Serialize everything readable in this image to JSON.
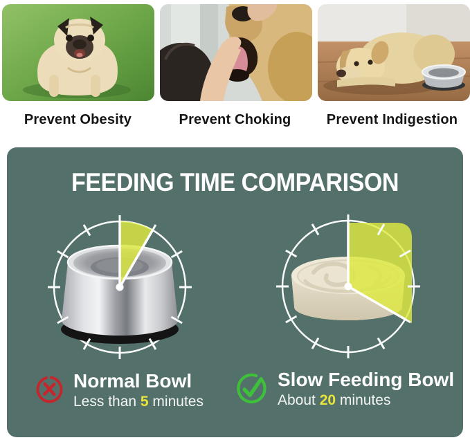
{
  "benefits": {
    "items": [
      {
        "caption": "Prevent Obesity",
        "photo": "fat pug dog standing on green grass"
      },
      {
        "caption": "Prevent Choking",
        "photo": "owner checking golden retriever open mouth"
      },
      {
        "caption": "Prevent Indigestion",
        "photo": "labrador lying on floor beside steel bowl"
      }
    ]
  },
  "comparison": {
    "title": "FEEDING TIME COMPARISON",
    "clocks": [
      {
        "name": "normal-bowl-clock",
        "bowl": "stainless steel bowl",
        "minutes": 5,
        "sweep_deg": 30
      },
      {
        "name": "slow-feeder-clock",
        "bowl": "slow feeding maze bowl",
        "minutes": 20,
        "sweep_deg": 120
      }
    ],
    "legend": [
      {
        "icon": "cross",
        "name": "Normal Bowl",
        "prefix": "Less than ",
        "value": "5",
        "suffix": " minutes"
      },
      {
        "icon": "check",
        "name": "Slow Feeding Bowl",
        "prefix": "About ",
        "value": "20",
        "suffix": " minutes"
      }
    ],
    "colors": {
      "panel_green": "#54706a",
      "wedge_yellow_green": "#dde93f",
      "accent_yellow": "#e9e43c",
      "cross_red": "#c5262c",
      "check_green": "#3ec03c",
      "text_white": "#fdfefd"
    }
  }
}
